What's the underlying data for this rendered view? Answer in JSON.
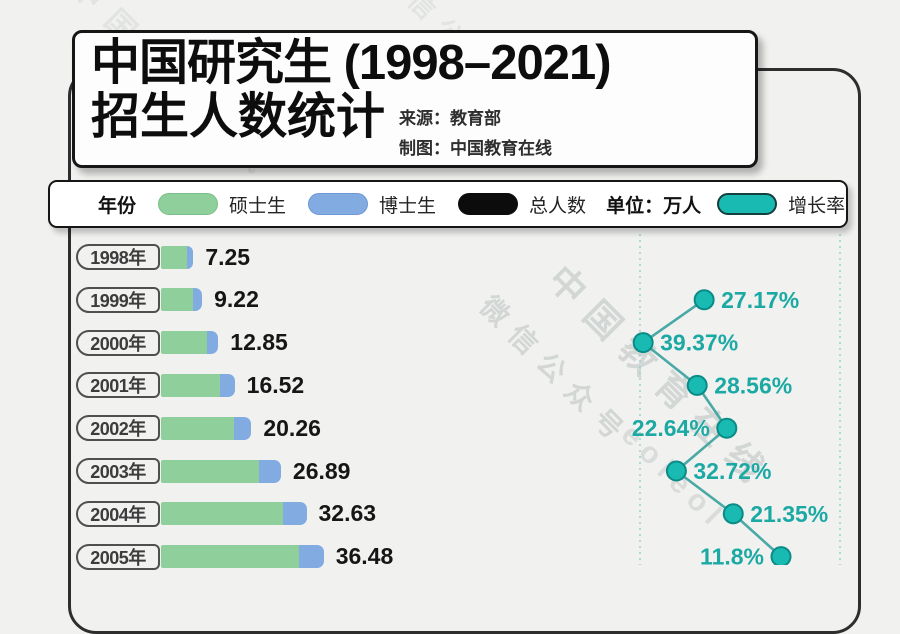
{
  "title_box": {
    "line1": "中国研究生 (1998–2021)",
    "line2": "招生人数统计",
    "source_label": "来源：教育部",
    "credit_label": "制图：中国教育在线"
  },
  "legend": {
    "year_label": "年份",
    "items": [
      {
        "label": "硕士生",
        "color": "#8fcf9b"
      },
      {
        "label": "博士生",
        "color": "#82abe2"
      },
      {
        "label": "总人数",
        "color": "#0c0c0c"
      },
      {
        "label": "增长率",
        "color": "#19bab2"
      }
    ],
    "unit_label": "单位：万人"
  },
  "watermarks": [
    "中国教育在线",
    "微信公众号",
    "eoleol"
  ],
  "colors": {
    "background": "#f1f2f0",
    "box_border": "#161616",
    "master_green": "#8fcf9b",
    "doctor_blue": "#82abe2",
    "growth_teal": "#19bab2",
    "growth_text": "#1ca9a4",
    "growth_line": "#4aa9a5",
    "dashed_guide": "#9ad6d2"
  },
  "chart_data": {
    "type": "bar+line",
    "title": "中国研究生 (1998–2021) 招生人数统计",
    "unit": "万人",
    "categories": [
      "1998年",
      "1999年",
      "2000年",
      "2001年",
      "2002年",
      "2003年",
      "2004年",
      "2005年"
    ],
    "series": [
      {
        "name": "硕士生",
        "color": "#8fcf9b",
        "estimated_from_bars": true,
        "values": [
          5.75,
          7.23,
          10.34,
          13.31,
          16.43,
          22.02,
          27.3,
          31.0
        ]
      },
      {
        "name": "博士生",
        "color": "#82abe2",
        "estimated_from_bars": true,
        "values": [
          1.5,
          1.99,
          2.51,
          3.21,
          3.83,
          4.87,
          5.33,
          5.48
        ]
      }
    ],
    "totals": {
      "name": "总人数",
      "values": [
        7.25,
        9.22,
        12.85,
        16.52,
        20.26,
        26.89,
        32.63,
        36.48
      ],
      "labels": [
        "7.25",
        "9.22",
        "12.85",
        "16.52",
        "20.26",
        "26.89",
        "32.63",
        "36.48"
      ]
    },
    "growth": {
      "name": "增长率",
      "unit": "%",
      "values": [
        null,
        27.17,
        39.37,
        28.56,
        22.64,
        32.72,
        21.35,
        11.8
      ],
      "labels": [
        null,
        "27.17%",
        "39.37%",
        "28.56%",
        "22.64%",
        "32.72%",
        "21.35%",
        "11.8%"
      ],
      "label_side": [
        null,
        "right",
        "right",
        "right",
        "left",
        "right",
        "right",
        "left"
      ],
      "axis": {
        "left_value": 40,
        "right_value": 0,
        "orientation": "higher-rate-left"
      }
    },
    "legend_position": "top",
    "grid": "dashed vertical guides at 40% and 0%"
  }
}
